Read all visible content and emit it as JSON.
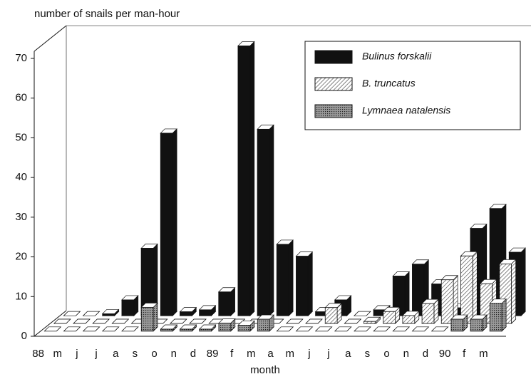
{
  "chart_data": {
    "type": "bar3d",
    "title": "number of snails per man-hour",
    "x_label": "month",
    "categories": [
      "88",
      "m",
      "j",
      "j",
      "a",
      "s",
      "o",
      "n",
      "d",
      "89",
      "f",
      "m",
      "a",
      "m",
      "j",
      "j",
      "a",
      "s",
      "o",
      "n",
      "d",
      "90",
      "f",
      "m"
    ],
    "series": [
      {
        "name": "Bulinus forskalii",
        "color": "#111111",
        "values": [
          0,
          0,
          0.5,
          4,
          17,
          46,
          1,
          1.5,
          6,
          68,
          47,
          18,
          15,
          1,
          4,
          0,
          1.5,
          10,
          13,
          8,
          2,
          22,
          27,
          16
        ]
      },
      {
        "name": "B. truncatus",
        "color": "#cccccc",
        "values": [
          0,
          0,
          0,
          0,
          0,
          0,
          0,
          0,
          0,
          0,
          0,
          0,
          0,
          0,
          4,
          0,
          0.5,
          3,
          2,
          5,
          11,
          17,
          10,
          15
        ]
      },
      {
        "name": "Lymnaea natalensis",
        "color": "#777777",
        "values": [
          0,
          0,
          0,
          0,
          0,
          6,
          0.5,
          0.5,
          0.5,
          2,
          1.5,
          3,
          0,
          0,
          0,
          0,
          0,
          0,
          0,
          0,
          0,
          3,
          3,
          7
        ]
      }
    ],
    "ylim": [
      0,
      70
    ],
    "yticks": [
      0,
      10,
      20,
      30,
      40,
      50,
      60,
      70
    ],
    "legend": "upper right"
  }
}
